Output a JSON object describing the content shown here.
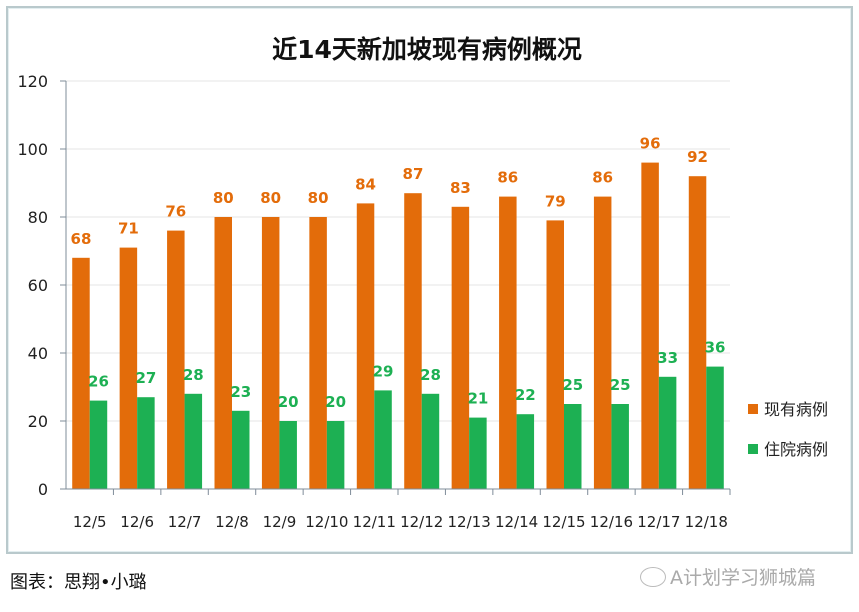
{
  "chart_data": {
    "type": "bar",
    "title": "近14天新加坡现有病例概况",
    "categories": [
      "12/5",
      "12/6",
      "12/7",
      "12/8",
      "12/9",
      "12/10",
      "12/11",
      "12/12",
      "12/13",
      "12/14",
      "12/15",
      "12/16",
      "12/17",
      "12/18"
    ],
    "series": [
      {
        "name": "现有病例",
        "color": "#E36C0A",
        "values": [
          68,
          71,
          76,
          80,
          80,
          80,
          84,
          87,
          83,
          86,
          79,
          86,
          96,
          92
        ]
      },
      {
        "name": "住院病例",
        "color": "#1DB053",
        "values": [
          26,
          27,
          28,
          23,
          20,
          20,
          29,
          28,
          21,
          22,
          25,
          25,
          33,
          36
        ]
      }
    ],
    "ylim": [
      0,
      120
    ],
    "yticks": [
      0,
      20,
      40,
      60,
      80,
      100,
      120
    ],
    "grid": true,
    "legend": "right",
    "xlabel": "",
    "ylabel": ""
  },
  "footer": {
    "caption": "图表：思翔•小璐",
    "watermark": "A计划学习狮城篇"
  }
}
